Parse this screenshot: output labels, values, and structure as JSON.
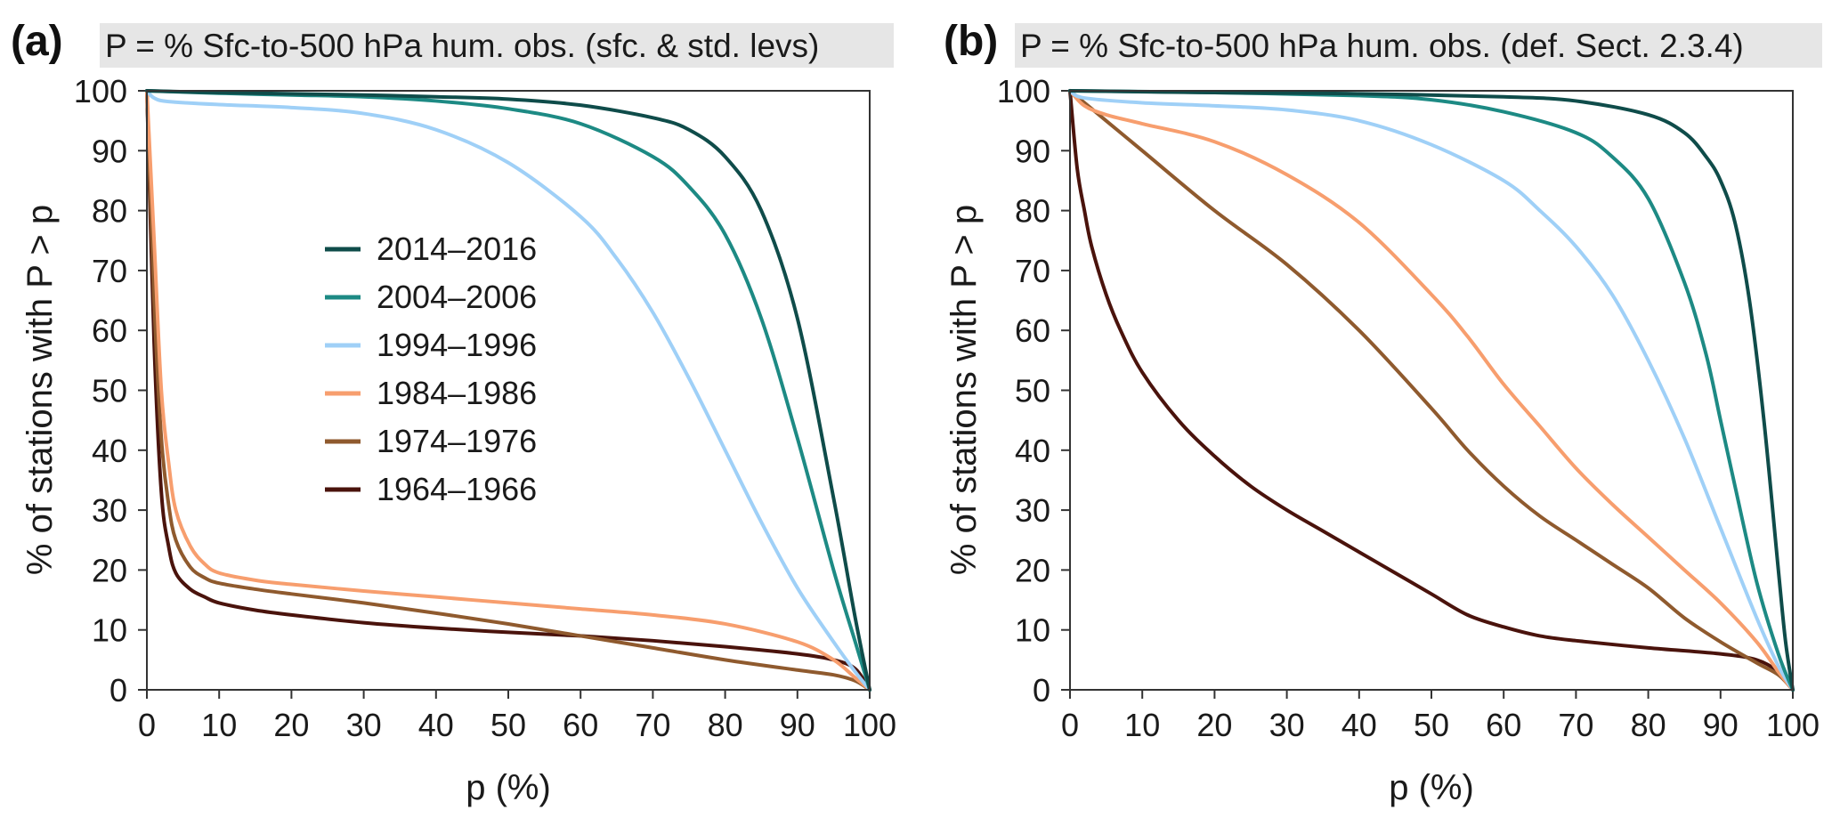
{
  "colors": {
    "series_2014": "#0f4c4a",
    "series_2004": "#1d8a84",
    "series_1994": "#9fd0f7",
    "series_1984": "#f79e6e",
    "series_1974": "#8f5a2e",
    "series_1964": "#4a130c",
    "title_bg": "#e6e6e6"
  },
  "chart_data": [
    {
      "type": "line",
      "panel_label": "(a)",
      "title": "P = % Sfc-to-500 hPa hum. obs. (sfc. & std. levs)",
      "xlabel": "p (%)",
      "ylabel": "% of stations with P > p",
      "xlim": [
        0,
        100
      ],
      "ylim": [
        0,
        100
      ],
      "xticks": [
        "0",
        "10",
        "20",
        "30",
        "40",
        "50",
        "60",
        "70",
        "80",
        "90",
        "100"
      ],
      "yticks": [
        "0",
        "10",
        "20",
        "30",
        "40",
        "50",
        "60",
        "70",
        "80",
        "90",
        "100"
      ],
      "legend_position": "center-left",
      "series": [
        {
          "name": "2014–2016",
          "x": [
            0,
            10,
            20,
            30,
            40,
            50,
            60,
            70,
            75,
            80,
            85,
            90,
            95,
            98,
            100
          ],
          "y": [
            100,
            99.7,
            99.5,
            99.3,
            99,
            98.6,
            97.6,
            95.5,
            93.5,
            89,
            80,
            62,
            32,
            12,
            0
          ]
        },
        {
          "name": "2004–2006",
          "x": [
            0,
            10,
            20,
            30,
            40,
            50,
            60,
            70,
            75,
            80,
            85,
            90,
            95,
            98,
            100
          ],
          "y": [
            100,
            99.6,
            99.3,
            99,
            98.3,
            97,
            94.5,
            89,
            84,
            76,
            62,
            42,
            20,
            8,
            0
          ]
        },
        {
          "name": "1994–1996",
          "x": [
            0,
            1,
            3,
            10,
            20,
            30,
            40,
            50,
            60,
            65,
            70,
            75,
            80,
            85,
            90,
            95,
            98,
            100
          ],
          "y": [
            100,
            98.8,
            98.2,
            97.7,
            97.2,
            96.2,
            93.5,
            88,
            79,
            72,
            63,
            52,
            40,
            28,
            17,
            8,
            3,
            0
          ]
        },
        {
          "name": "1984–1986",
          "x": [
            0,
            1,
            2,
            3,
            4,
            6,
            8,
            10,
            15,
            20,
            30,
            40,
            50,
            60,
            70,
            80,
            90,
            95,
            98,
            100
          ],
          "y": [
            100,
            75,
            50,
            38,
            30,
            24,
            21,
            19.5,
            18.3,
            17.6,
            16.5,
            15.5,
            14.5,
            13.5,
            12.5,
            11,
            8,
            5,
            2,
            0
          ]
        },
        {
          "name": "1974–1976",
          "x": [
            0,
            1,
            2,
            3,
            4,
            6,
            8,
            10,
            15,
            20,
            30,
            40,
            50,
            60,
            70,
            80,
            90,
            95,
            98,
            100
          ],
          "y": [
            100,
            65,
            42,
            31,
            25,
            20.5,
            18.7,
            17.8,
            16.8,
            16,
            14.5,
            12.8,
            11,
            9,
            7,
            5,
            3.3,
            2.5,
            1.5,
            0
          ]
        },
        {
          "name": "1964–1966",
          "x": [
            0,
            1,
            2,
            3,
            4,
            6,
            8,
            10,
            15,
            20,
            30,
            40,
            50,
            60,
            70,
            80,
            90,
            95,
            98,
            100
          ],
          "y": [
            100,
            58,
            33,
            24,
            19.5,
            16.8,
            15.5,
            14.5,
            13.3,
            12.5,
            11.2,
            10.3,
            9.6,
            9,
            8.2,
            7.2,
            6,
            5,
            3.5,
            0
          ]
        }
      ]
    },
    {
      "type": "line",
      "panel_label": "(b)",
      "title": "P = % Sfc-to-500 hPa hum. obs. (def. Sect. 2.3.4)",
      "xlabel": "p (%)",
      "ylabel": "% of stations with P > p",
      "xlim": [
        0,
        100
      ],
      "ylim": [
        0,
        100
      ],
      "xticks": [
        "0",
        "10",
        "20",
        "30",
        "40",
        "50",
        "60",
        "70",
        "80",
        "90",
        "100"
      ],
      "yticks": [
        "0",
        "10",
        "20",
        "30",
        "40",
        "50",
        "60",
        "70",
        "80",
        "90",
        "100"
      ],
      "legend_position": "none",
      "series": [
        {
          "name": "2014–2016",
          "x": [
            0,
            20,
            40,
            60,
            70,
            80,
            85,
            88,
            90,
            92,
            94,
            96,
            98,
            99,
            100
          ],
          "y": [
            100,
            99.7,
            99.5,
            99,
            98.3,
            96,
            93,
            89,
            85,
            78,
            65,
            45,
            20,
            8,
            0
          ]
        },
        {
          "name": "2004–2006",
          "x": [
            0,
            20,
            40,
            50,
            60,
            70,
            75,
            80,
            85,
            88,
            90,
            92,
            95,
            98,
            100
          ],
          "y": [
            100,
            99.7,
            99.2,
            98.5,
            96.5,
            93,
            89,
            82,
            68,
            56,
            45,
            34,
            18,
            6,
            0
          ]
        },
        {
          "name": "1994–1996",
          "x": [
            0,
            2,
            10,
            20,
            30,
            40,
            50,
            60,
            65,
            70,
            75,
            80,
            85,
            90,
            95,
            98,
            100
          ],
          "y": [
            100,
            98.8,
            98,
            97.5,
            96.8,
            95,
            91,
            85,
            80,
            74,
            66,
            55,
            42,
            27,
            12,
            4,
            0
          ]
        },
        {
          "name": "1984–1986",
          "x": [
            0,
            2,
            5,
            10,
            20,
            30,
            40,
            50,
            55,
            60,
            65,
            70,
            75,
            80,
            85,
            90,
            95,
            98,
            100
          ],
          "y": [
            100,
            97.5,
            96,
            94.5,
            91.5,
            86,
            78,
            66,
            59,
            51,
            44,
            37,
            31,
            25.5,
            20,
            14.5,
            8,
            3,
            0
          ]
        },
        {
          "name": "1974–1976",
          "x": [
            0,
            5,
            10,
            20,
            30,
            40,
            50,
            55,
            60,
            65,
            70,
            75,
            80,
            85,
            90,
            95,
            98,
            100
          ],
          "y": [
            100,
            95,
            90,
            80,
            71,
            60,
            47,
            40,
            34,
            29,
            25,
            21,
            17,
            12,
            8,
            4.5,
            2.5,
            0
          ]
        },
        {
          "name": "1964–1966",
          "x": [
            0,
            1,
            2,
            3,
            5,
            7,
            10,
            15,
            20,
            25,
            30,
            35,
            40,
            45,
            50,
            55,
            60,
            65,
            70,
            80,
            90,
            95,
            98,
            100
          ],
          "y": [
            100,
            87,
            80,
            74,
            66,
            60,
            53,
            45,
            39,
            34,
            30,
            26.5,
            23,
            19.5,
            16,
            12.5,
            10.5,
            9,
            8.2,
            7,
            6,
            5,
            3,
            0
          ]
        }
      ]
    }
  ]
}
